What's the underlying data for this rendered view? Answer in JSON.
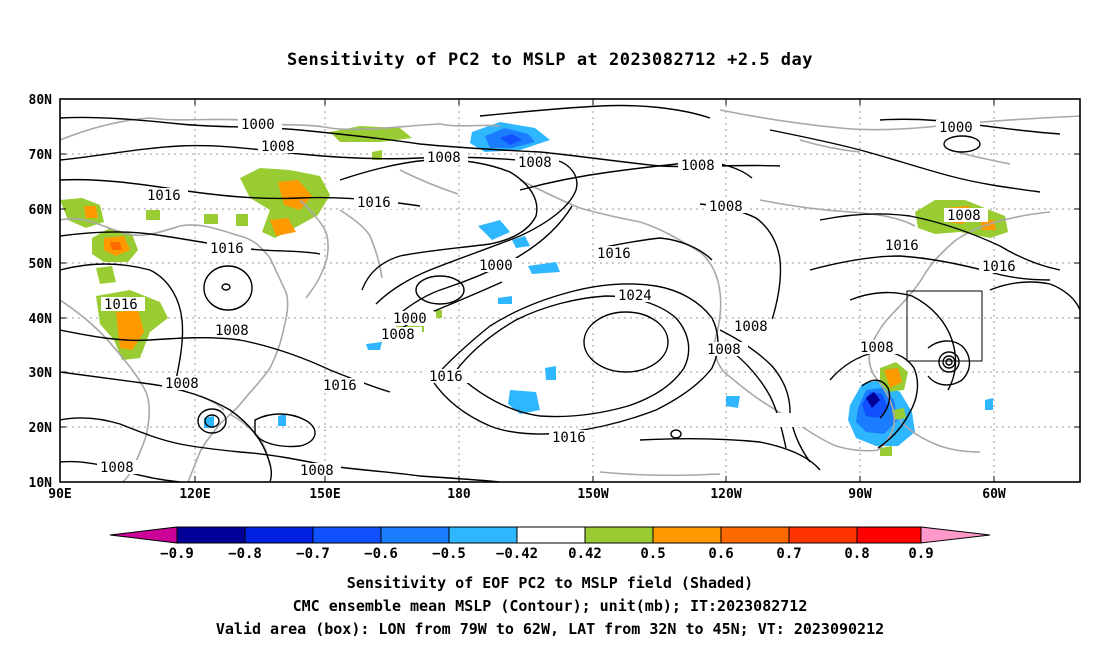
{
  "title": "Sensitivity of PC2 to MSLP at 2023082712 +2.5 day",
  "lat_labels": [
    "80N",
    "70N",
    "60N",
    "50N",
    "40N",
    "30N",
    "20N",
    "10N"
  ],
  "lon_labels": [
    "90E",
    "120E",
    "150E",
    "180",
    "150W",
    "120W",
    "90W",
    "60W"
  ],
  "contour_labels": [
    "1000",
    "1008",
    "1008",
    "1016",
    "1008",
    "1016",
    "1000",
    "1000",
    "1016",
    "1016",
    "1024",
    "1008",
    "1008",
    "1016",
    "1016",
    "1016",
    "1008",
    "1008",
    "1008",
    "1008",
    "1008",
    "1008",
    "1008",
    "1016",
    "1000",
    "1008",
    "1016",
    "1016",
    "1008"
  ],
  "colorbar": {
    "labels": [
      "−0.9",
      "−0.8",
      "−0.7",
      "−0.6",
      "−0.5",
      "−0.42",
      "0.42",
      "0.5",
      "0.6",
      "0.7",
      "0.8",
      "0.9"
    ],
    "colors": [
      "#000099",
      "#0020e0",
      "#1050ff",
      "#1a7cff",
      "#2eb6ff",
      "#ffffff",
      "#99cc33",
      "#ff9900",
      "#ff6a00",
      "#ff3300",
      "#ff0000"
    ],
    "under_color": "#cc0099",
    "over_color": "#ff99cc"
  },
  "footer": {
    "line1": "Sensitivity of EOF PC2 to MSLP field (Shaded)",
    "line2": "CMC ensemble mean MSLP (Contour); unit(mb); IT:2023082712",
    "line3": "Valid area (box): LON from 79W to 62W, LAT from 32N to 45N; VT: 2023090212"
  }
}
